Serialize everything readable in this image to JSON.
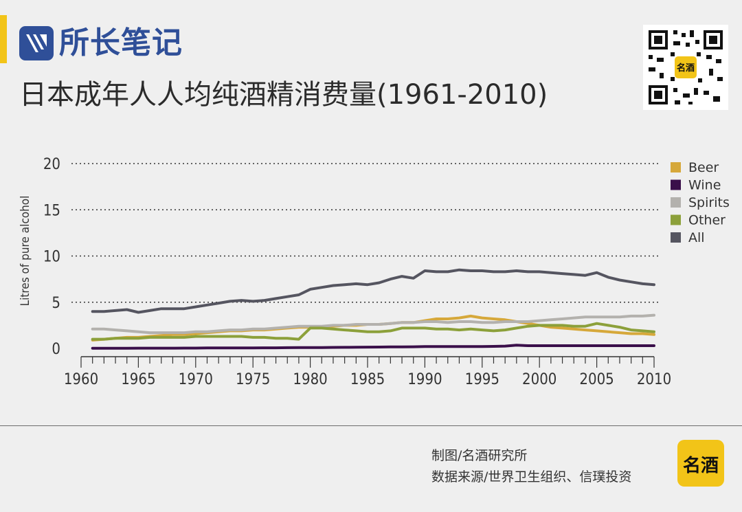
{
  "brand": {
    "name": "所长笔记"
  },
  "title": "日本成年人人均纯酒精消费量(1961-2010)",
  "footer": {
    "credit_line_1": "制图/名酒研究所",
    "credit_line_2": "数据来源/世界卫生组织、信璞投资",
    "logo_text": "名酒"
  },
  "colors": {
    "accent_bar": "#f2c418",
    "brand_blue": "#2f4f98",
    "Beer": "#d6a83a",
    "Wine": "#3a0f4a",
    "Spirits": "#b3b1ad",
    "Other": "#8ca03a",
    "All": "#555560"
  },
  "chart_data": {
    "type": "line",
    "title": "",
    "xlabel": "",
    "ylabel": "Litres of pure alcohol",
    "xlim": [
      1960,
      2010
    ],
    "ylim": [
      0,
      20
    ],
    "x_ticks": [
      1960,
      1965,
      1970,
      1975,
      1980,
      1985,
      1990,
      1995,
      2000,
      2005,
      2010
    ],
    "y_ticks": [
      0,
      5,
      10,
      15,
      20
    ],
    "grid": "horizontal-dotted",
    "legend": "top-right",
    "x": [
      1961,
      1962,
      1963,
      1964,
      1965,
      1966,
      1967,
      1968,
      1969,
      1970,
      1971,
      1972,
      1973,
      1974,
      1975,
      1976,
      1977,
      1978,
      1979,
      1980,
      1981,
      1982,
      1983,
      1984,
      1985,
      1986,
      1987,
      1988,
      1989,
      1990,
      1991,
      1992,
      1993,
      1994,
      1995,
      1996,
      1997,
      1998,
      1999,
      2000,
      2001,
      2002,
      2003,
      2004,
      2005,
      2006,
      2007,
      2008,
      2009,
      2010
    ],
    "series": [
      {
        "name": "Beer",
        "values": [
          0.9,
          1.0,
          1.1,
          1.2,
          1.2,
          1.3,
          1.4,
          1.5,
          1.5,
          1.6,
          1.7,
          1.8,
          1.9,
          1.9,
          2.0,
          2.0,
          2.1,
          2.2,
          2.3,
          2.3,
          2.3,
          2.4,
          2.5,
          2.5,
          2.6,
          2.6,
          2.7,
          2.8,
          2.8,
          3.0,
          3.2,
          3.2,
          3.3,
          3.5,
          3.3,
          3.2,
          3.1,
          2.9,
          2.7,
          2.5,
          2.3,
          2.2,
          2.1,
          2.0,
          1.9,
          1.8,
          1.7,
          1.6,
          1.6,
          1.5
        ]
      },
      {
        "name": "Wine",
        "values": [
          0.02,
          0.02,
          0.02,
          0.02,
          0.03,
          0.03,
          0.03,
          0.03,
          0.04,
          0.04,
          0.05,
          0.05,
          0.06,
          0.06,
          0.06,
          0.07,
          0.07,
          0.08,
          0.09,
          0.1,
          0.1,
          0.11,
          0.12,
          0.13,
          0.14,
          0.15,
          0.16,
          0.17,
          0.18,
          0.2,
          0.2,
          0.2,
          0.2,
          0.2,
          0.2,
          0.22,
          0.25,
          0.35,
          0.3,
          0.3,
          0.3,
          0.3,
          0.3,
          0.3,
          0.3,
          0.3,
          0.3,
          0.3,
          0.3,
          0.3
        ]
      },
      {
        "name": "Spirits",
        "values": [
          2.1,
          2.1,
          2.0,
          1.9,
          1.8,
          1.7,
          1.7,
          1.7,
          1.7,
          1.8,
          1.8,
          1.9,
          2.0,
          2.0,
          2.1,
          2.1,
          2.2,
          2.3,
          2.4,
          2.4,
          2.4,
          2.5,
          2.5,
          2.6,
          2.6,
          2.6,
          2.7,
          2.8,
          2.8,
          2.9,
          2.9,
          2.8,
          2.9,
          2.9,
          2.8,
          2.8,
          2.9,
          2.9,
          2.9,
          3.0,
          3.1,
          3.2,
          3.3,
          3.4,
          3.4,
          3.4,
          3.4,
          3.5,
          3.5,
          3.6
        ]
      },
      {
        "name": "Other",
        "values": [
          1.0,
          1.0,
          1.1,
          1.1,
          1.1,
          1.2,
          1.2,
          1.2,
          1.2,
          1.3,
          1.3,
          1.3,
          1.3,
          1.3,
          1.2,
          1.2,
          1.1,
          1.1,
          1.0,
          2.2,
          2.2,
          2.1,
          2.0,
          1.9,
          1.8,
          1.8,
          1.9,
          2.2,
          2.2,
          2.2,
          2.1,
          2.1,
          2.0,
          2.1,
          2.0,
          1.9,
          2.0,
          2.2,
          2.4,
          2.5,
          2.5,
          2.5,
          2.4,
          2.4,
          2.7,
          2.5,
          2.3,
          2.0,
          1.9,
          1.8
        ]
      },
      {
        "name": "All",
        "values": [
          4.0,
          4.0,
          4.1,
          4.2,
          3.9,
          4.1,
          4.3,
          4.3,
          4.3,
          4.5,
          4.7,
          4.9,
          5.1,
          5.2,
          5.1,
          5.2,
          5.4,
          5.6,
          5.8,
          6.4,
          6.6,
          6.8,
          6.9,
          7.0,
          6.9,
          7.1,
          7.5,
          7.8,
          7.6,
          8.4,
          8.3,
          8.3,
          8.5,
          8.4,
          8.4,
          8.3,
          8.3,
          8.4,
          8.3,
          8.3,
          8.2,
          8.1,
          8.0,
          7.9,
          8.2,
          7.7,
          7.4,
          7.2,
          7.0,
          6.9
        ]
      }
    ]
  }
}
